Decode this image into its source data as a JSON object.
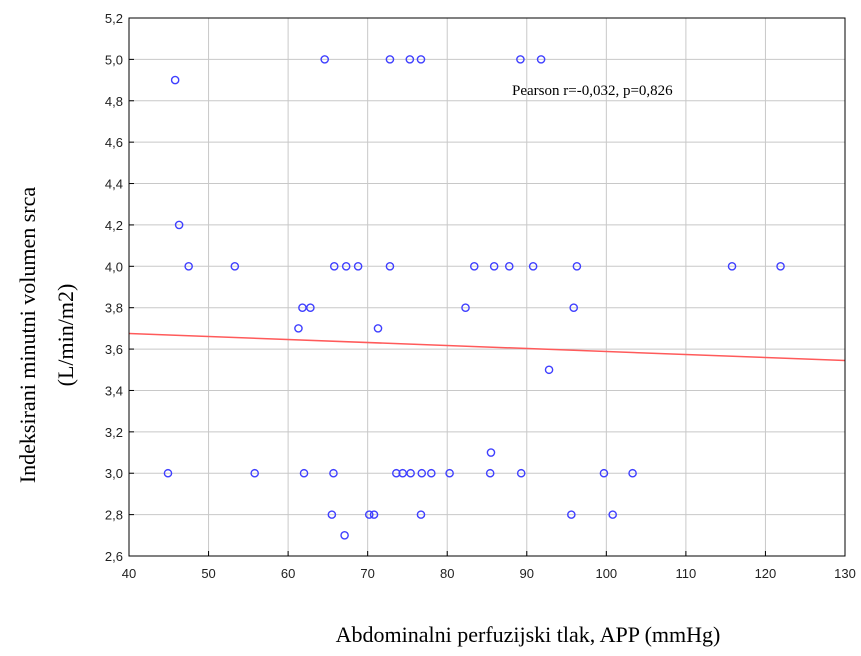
{
  "chart_data": {
    "type": "scatter",
    "xlabel": "Abdominalni  perfuzijski  tlak, APP (mmHg)",
    "ylabel_line1": "Indeksirani  minutni  volumen  srca",
    "ylabel_line2": "(L/min/m2)",
    "annotation": "Pearson r=-0,032, p=0,826",
    "xlim": [
      40,
      130
    ],
    "ylim": [
      2.6,
      5.2
    ],
    "xticks": [
      40,
      50,
      60,
      70,
      80,
      90,
      100,
      110,
      120,
      130
    ],
    "xtick_labels": [
      "40",
      "50",
      "60",
      "70",
      "80",
      "90",
      "100",
      "110",
      "120",
      "130"
    ],
    "yticks": [
      2.6,
      2.8,
      3.0,
      3.2,
      3.4,
      3.6,
      3.8,
      4.0,
      4.2,
      4.4,
      4.6,
      4.8,
      5.0,
      5.2
    ],
    "ytick_labels": [
      "2,6",
      "2,8",
      "3,0",
      "3,2",
      "3,4",
      "3,6",
      "3,8",
      "4,0",
      "4,2",
      "4,4",
      "4,6",
      "4,8",
      "5,0",
      "5,2"
    ],
    "grid": true,
    "colors": {
      "points": "#3f3fff",
      "fit_line": "#ff5a5a",
      "grid": "#c8c8c8",
      "axes": "#000000"
    },
    "points": [
      [
        45.8,
        4.9
      ],
      [
        46.3,
        4.2
      ],
      [
        47.5,
        4.0
      ],
      [
        53.3,
        4.0
      ],
      [
        44.9,
        3.0
      ],
      [
        55.8,
        3.0
      ],
      [
        64.6,
        5.0
      ],
      [
        72.8,
        5.0
      ],
      [
        75.3,
        5.0
      ],
      [
        76.7,
        5.0
      ],
      [
        89.2,
        5.0
      ],
      [
        91.8,
        5.0
      ],
      [
        65.8,
        4.0
      ],
      [
        67.3,
        4.0
      ],
      [
        68.8,
        4.0
      ],
      [
        72.8,
        4.0
      ],
      [
        83.4,
        4.0
      ],
      [
        85.9,
        4.0
      ],
      [
        87.8,
        4.0
      ],
      [
        90.8,
        4.0
      ],
      [
        96.3,
        4.0
      ],
      [
        115.8,
        4.0
      ],
      [
        121.9,
        4.0
      ],
      [
        61.8,
        3.8
      ],
      [
        62.8,
        3.8
      ],
      [
        82.3,
        3.8
      ],
      [
        95.9,
        3.8
      ],
      [
        61.3,
        3.7
      ],
      [
        71.3,
        3.7
      ],
      [
        92.8,
        3.5
      ],
      [
        85.5,
        3.1
      ],
      [
        62.0,
        3.0
      ],
      [
        65.7,
        3.0
      ],
      [
        73.6,
        3.0
      ],
      [
        74.4,
        3.0
      ],
      [
        75.4,
        3.0
      ],
      [
        76.8,
        3.0
      ],
      [
        78.0,
        3.0
      ],
      [
        80.3,
        3.0
      ],
      [
        85.4,
        3.0
      ],
      [
        89.3,
        3.0
      ],
      [
        99.7,
        3.0
      ],
      [
        103.3,
        3.0
      ],
      [
        65.5,
        2.8
      ],
      [
        70.2,
        2.8
      ],
      [
        70.8,
        2.8
      ],
      [
        76.7,
        2.8
      ],
      [
        95.6,
        2.8
      ],
      [
        100.8,
        2.8
      ],
      [
        67.1,
        2.7
      ]
    ],
    "fit_line": {
      "x": [
        40,
        130
      ],
      "y": [
        3.675,
        3.545
      ]
    }
  }
}
